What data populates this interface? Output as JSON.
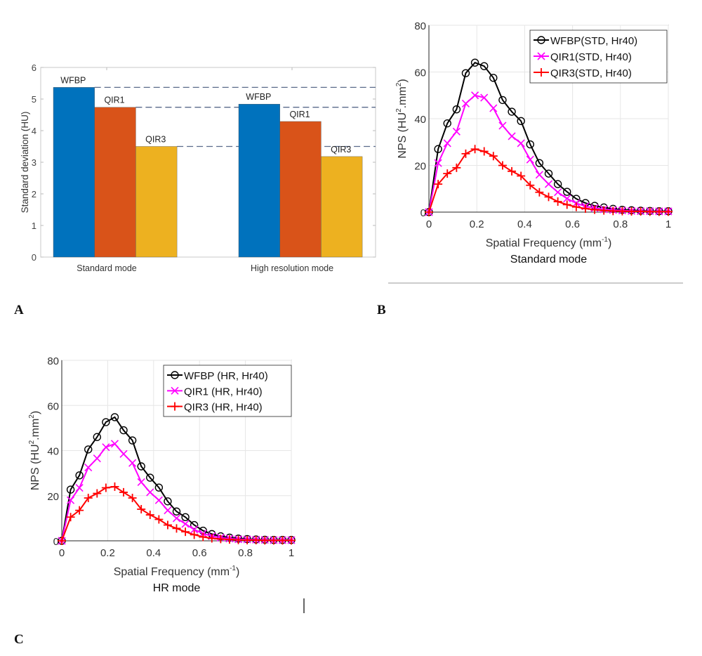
{
  "panels": {
    "a_label": "A",
    "b_label": "B",
    "c_label": "C"
  },
  "colors": {
    "wfbp_bar": "#0072BD",
    "qir1_bar": "#D95319",
    "qir3_bar": "#EDB120",
    "wfbp_line": "#000000",
    "qir1_line": "#FF00FF",
    "qir3_line": "#FF0000",
    "dash_line": "#5a6a8a",
    "grid": "#e6e6e6",
    "axis": "#262626",
    "tick_text": "#3a3a3a"
  },
  "chart_data": [
    {
      "id": "A",
      "type": "bar",
      "title": "",
      "xlabel": "",
      "ylabel": "Standard deviation (HU)",
      "ylim": [
        0,
        6
      ],
      "yticks": [
        "0",
        "1",
        "2",
        "3",
        "4",
        "5",
        "6"
      ],
      "categories": [
        "Standard mode",
        "High resolution mode"
      ],
      "series": [
        {
          "name": "WFBP",
          "values": [
            5.37,
            4.84
          ]
        },
        {
          "name": "QIR1",
          "values": [
            4.74,
            4.29
          ]
        },
        {
          "name": "QIR3",
          "values": [
            3.5,
            3.18
          ]
        }
      ],
      "bar_labels": [
        "WFBP",
        "QIR1",
        "QIR3"
      ],
      "reference_lines": [
        5.37,
        4.74,
        3.5
      ],
      "grid": false
    },
    {
      "id": "B",
      "type": "line",
      "title": "Standard mode",
      "xlabel": "Spatial Frequency (mm",
      "xlabel_sup": "-1",
      "xlabel_end": ")",
      "ylabel": "NPS (HU",
      "ylabel_sup": "2",
      "ylabel_mid": ".mm",
      "ylabel_sup2": "2",
      "ylabel_end": ")",
      "xlim": [
        0,
        1
      ],
      "ylim": [
        0,
        80
      ],
      "xticks": [
        "0",
        "0.2",
        "0.4",
        "0.6",
        "0.8",
        "1"
      ],
      "yticks": [
        "0",
        "20",
        "40",
        "60",
        "80"
      ],
      "grid": true,
      "legend_position": "top-right",
      "x": [
        0,
        0.0385,
        0.0769,
        0.1154,
        0.1538,
        0.1923,
        0.2308,
        0.2692,
        0.3077,
        0.3462,
        0.3846,
        0.4231,
        0.4615,
        0.5,
        0.5385,
        0.5769,
        0.6154,
        0.6538,
        0.6923,
        0.7308,
        0.7692,
        0.8077,
        0.8462,
        0.8846,
        0.9231,
        0.9615,
        1.0
      ],
      "series": [
        {
          "name": "WFBP(STD, Hr40)",
          "marker": "circle",
          "values": [
            0,
            27,
            38,
            44,
            59.5,
            64,
            62.5,
            57.5,
            48,
            43,
            39,
            29,
            21,
            16.5,
            12,
            8.7,
            5.7,
            3.9,
            2.7,
            2.0,
            1.4,
            1.0,
            0.8,
            0.6,
            0.5,
            0.4,
            0.4
          ]
        },
        {
          "name": "QIR1(STD, Hr40)",
          "marker": "x",
          "values": [
            0,
            21,
            29.5,
            34.5,
            46.5,
            50,
            49,
            44.5,
            37,
            32.5,
            29.5,
            22.5,
            16,
            12,
            8.5,
            5.8,
            3.8,
            2.5,
            1.7,
            1.2,
            0.9,
            0.7,
            0.5,
            0.4,
            0.4,
            0.3,
            0.3
          ]
        },
        {
          "name": "QIR3(STD, Hr40)",
          "marker": "plus",
          "values": [
            0,
            12,
            16.5,
            19,
            25,
            27,
            26,
            24,
            20,
            17.5,
            15.5,
            11.5,
            8.5,
            6.5,
            4.5,
            3.2,
            2.2,
            1.5,
            1.0,
            0.7,
            0.5,
            0.4,
            0.3,
            0.3,
            0.2,
            0.2,
            0.2
          ]
        }
      ]
    },
    {
      "id": "C",
      "type": "line",
      "title": "HR mode",
      "xlabel": "Spatial Frequency (mm",
      "xlabel_sup": "-1",
      "xlabel_end": ")",
      "ylabel": "NPS (HU",
      "ylabel_sup": "2",
      "ylabel_mid": ".mm",
      "ylabel_sup2": "2",
      "ylabel_end": ")",
      "xlim": [
        0,
        1
      ],
      "ylim": [
        0,
        80
      ],
      "xticks": [
        "0",
        "0.2",
        "0.4",
        "0.6",
        "0.8",
        "1"
      ],
      "yticks": [
        "0",
        "20",
        "40",
        "60",
        "80"
      ],
      "grid": true,
      "legend_position": "top-right",
      "x": [
        0,
        0.0385,
        0.0769,
        0.1154,
        0.1538,
        0.1923,
        0.2308,
        0.2692,
        0.3077,
        0.3462,
        0.3846,
        0.4231,
        0.4615,
        0.5,
        0.5385,
        0.5769,
        0.6154,
        0.6538,
        0.6923,
        0.7308,
        0.7692,
        0.8077,
        0.8462,
        0.8846,
        0.9231,
        0.9615,
        1.0
      ],
      "series": [
        {
          "name": "WFBP (HR, Hr40)",
          "marker": "circle",
          "values": [
            0,
            22.7,
            29,
            40.5,
            46,
            52.6,
            54.8,
            49,
            44.5,
            33,
            28,
            23.6,
            17.5,
            13,
            10.5,
            7,
            4.5,
            3,
            2,
            1.4,
            1.0,
            0.8,
            0.6,
            0.5,
            0.4,
            0.4,
            0.4
          ]
        },
        {
          "name": "QIR1 (HR, Hr40)",
          "marker": "x",
          "values": [
            0,
            18,
            23.5,
            32.5,
            36.5,
            41.5,
            43,
            38.5,
            34.5,
            26,
            21.5,
            18,
            13.5,
            10,
            7.5,
            5,
            3.2,
            2.1,
            1.4,
            1.0,
            0.7,
            0.6,
            0.5,
            0.4,
            0.3,
            0.3,
            0.3
          ]
        },
        {
          "name": "QIR3 (HR, Hr40)",
          "marker": "plus",
          "values": [
            0,
            10.5,
            13.5,
            19,
            21,
            23.5,
            24,
            21.5,
            19,
            14,
            11.5,
            9.5,
            7,
            5.5,
            4,
            2.7,
            1.7,
            1.1,
            0.8,
            0.6,
            0.4,
            0.3,
            0.3,
            0.2,
            0.2,
            0.2,
            0.2
          ]
        }
      ]
    }
  ]
}
